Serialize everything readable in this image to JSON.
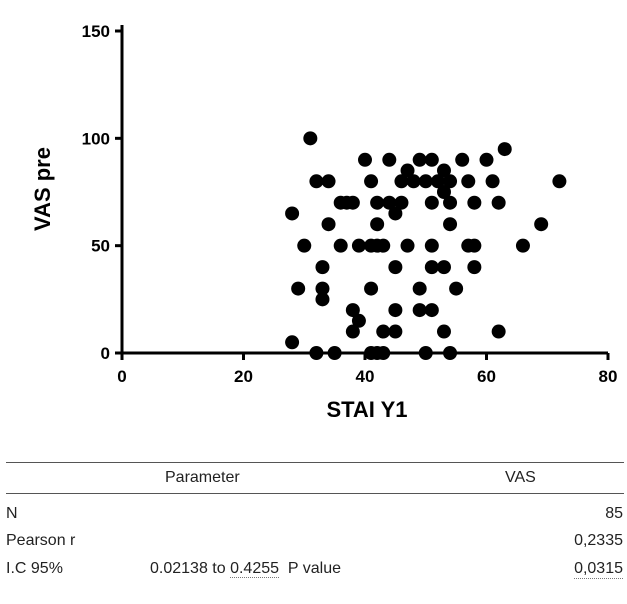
{
  "chart_data": {
    "type": "scatter",
    "title": "",
    "xlabel": "STAI Y1",
    "ylabel": "VAS pre",
    "xlim": [
      0,
      80
    ],
    "ylim": [
      0,
      150
    ],
    "xticks": [
      "0",
      "20",
      "40",
      "60",
      "80"
    ],
    "yticks": [
      "0",
      "50",
      "100",
      "150"
    ],
    "grid": false,
    "marker_color": "#000000",
    "points": [
      [
        31,
        100
      ],
      [
        63,
        95
      ],
      [
        40,
        90
      ],
      [
        44,
        90
      ],
      [
        49,
        90
      ],
      [
        51,
        90
      ],
      [
        56,
        90
      ],
      [
        60,
        90
      ],
      [
        47,
        85
      ],
      [
        53,
        85
      ],
      [
        32,
        80
      ],
      [
        34,
        80
      ],
      [
        41,
        80
      ],
      [
        46,
        80
      ],
      [
        48,
        80
      ],
      [
        50,
        80
      ],
      [
        52,
        80
      ],
      [
        54,
        80
      ],
      [
        57,
        80
      ],
      [
        61,
        80
      ],
      [
        72,
        80
      ],
      [
        53,
        75
      ],
      [
        36,
        70
      ],
      [
        37,
        70
      ],
      [
        38,
        70
      ],
      [
        42,
        70
      ],
      [
        44,
        70
      ],
      [
        46,
        70
      ],
      [
        51,
        70
      ],
      [
        54,
        70
      ],
      [
        58,
        70
      ],
      [
        62,
        70
      ],
      [
        28,
        65
      ],
      [
        45,
        65
      ],
      [
        34,
        60
      ],
      [
        42,
        60
      ],
      [
        54,
        60
      ],
      [
        69,
        60
      ],
      [
        30,
        50
      ],
      [
        36,
        50
      ],
      [
        39,
        50
      ],
      [
        41,
        50
      ],
      [
        42,
        50
      ],
      [
        43,
        50
      ],
      [
        47,
        50
      ],
      [
        51,
        50
      ],
      [
        57,
        50
      ],
      [
        58,
        50
      ],
      [
        66,
        50
      ],
      [
        33,
        40
      ],
      [
        45,
        40
      ],
      [
        51,
        40
      ],
      [
        53,
        40
      ],
      [
        58,
        40
      ],
      [
        29,
        30
      ],
      [
        33,
        30
      ],
      [
        41,
        30
      ],
      [
        49,
        30
      ],
      [
        55,
        30
      ],
      [
        33,
        25
      ],
      [
        38,
        20
      ],
      [
        45,
        20
      ],
      [
        49,
        20
      ],
      [
        51,
        20
      ],
      [
        39,
        15
      ],
      [
        38,
        10
      ],
      [
        43,
        10
      ],
      [
        45,
        10
      ],
      [
        53,
        10
      ],
      [
        62,
        10
      ],
      [
        28,
        5
      ],
      [
        32,
        0
      ],
      [
        35,
        0
      ],
      [
        41,
        0
      ],
      [
        42,
        0
      ],
      [
        43,
        0
      ],
      [
        50,
        0
      ],
      [
        54,
        0
      ]
    ]
  },
  "stats_table": {
    "header_parameter": "Parameter",
    "header_vas": "VAS",
    "row_n_label": "N",
    "row_n_value": "85",
    "row_pearson_label": "Pearson r",
    "row_pearson_value": "0,2335",
    "row_ic_label": "I.C 95%",
    "row_ic_range_a": "0.02138 to ",
    "row_ic_range_b": "0.4255",
    "row_ic_pvalue_label": "P value",
    "row_ic_value": "0,0315"
  }
}
